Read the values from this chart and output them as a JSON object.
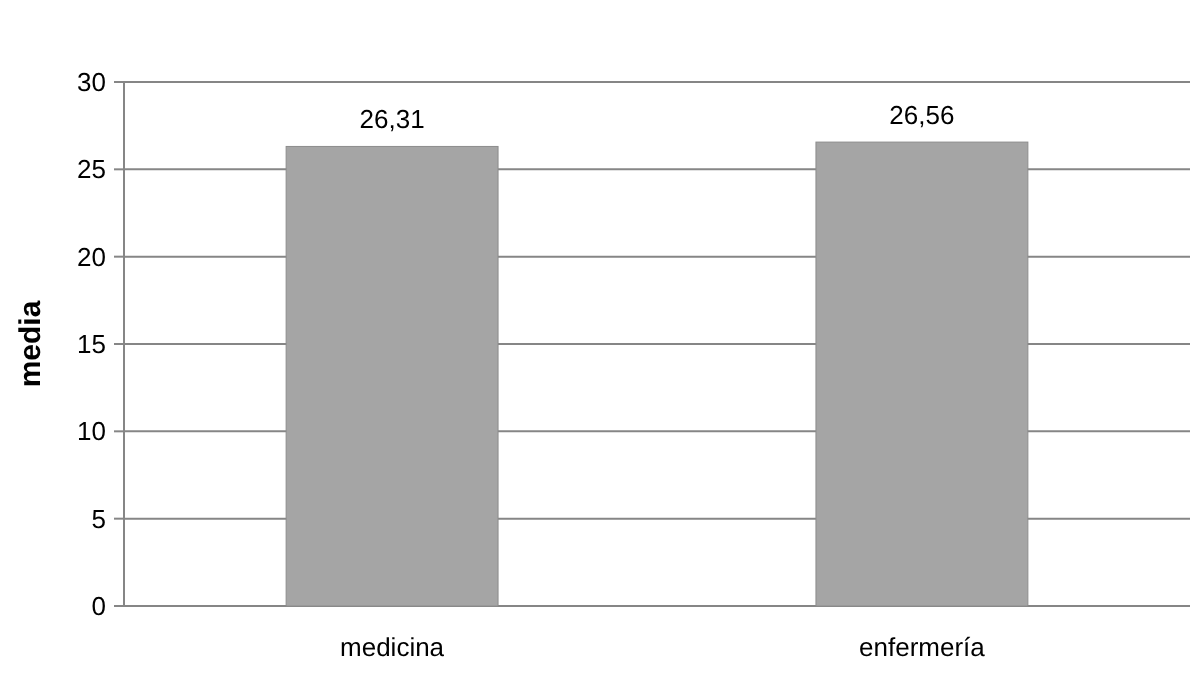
{
  "chart_data": {
    "type": "bar",
    "ylabel": "media",
    "categories": [
      "medicina",
      "enfermería"
    ],
    "values": [
      26.31,
      26.56
    ],
    "value_labels": [
      "26,31",
      "26,56"
    ],
    "color": "#a5a5a5",
    "ylim": [
      0,
      30
    ],
    "yticks": [
      0,
      5,
      10,
      15,
      20,
      25,
      30
    ],
    "grid": "y"
  }
}
